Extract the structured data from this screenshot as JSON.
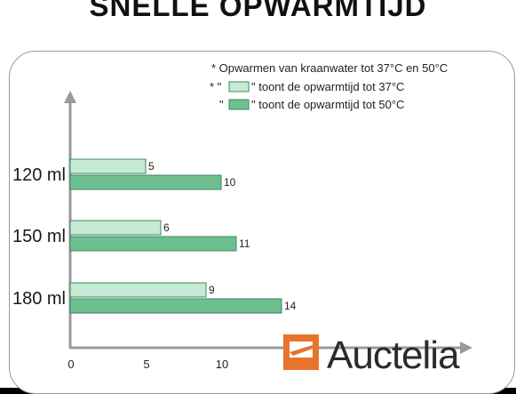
{
  "title": "SNELLE OPWARMTIJD",
  "notes": {
    "line1": "* Opwarmen van kraanwater tot 37°C en 50°C",
    "line2_prefix": "* \"",
    "line2_suffix": "\" toont de opwarmtijd tot 37°C",
    "line3_prefix": "\"",
    "line3_suffix": "\" toont de opwarmtijd tot 50°C"
  },
  "watermark": {
    "text": "Auctelia"
  },
  "chart_data": {
    "type": "bar",
    "orientation": "horizontal",
    "categories": [
      "120 ml",
      "150 ml",
      "180 ml"
    ],
    "series": [
      {
        "name": "opwarmtijd tot 37°C",
        "values": [
          5,
          6,
          9
        ],
        "color": "#c6ead4"
      },
      {
        "name": "opwarmtijd tot 50°C",
        "values": [
          10,
          11,
          14
        ],
        "color": "#6dbf8f"
      }
    ],
    "data_labels": true,
    "x_ticks": [
      "0",
      "5",
      "10"
    ],
    "xlim": [
      0,
      20
    ],
    "grid": false,
    "legend": "top-right"
  },
  "colors": {
    "series_37": "#c6ead4",
    "series_50": "#6dbf8f",
    "bar_stroke": "#3d8a60",
    "axis": "#9a9a9a",
    "logo_orange": "#e8742a"
  }
}
